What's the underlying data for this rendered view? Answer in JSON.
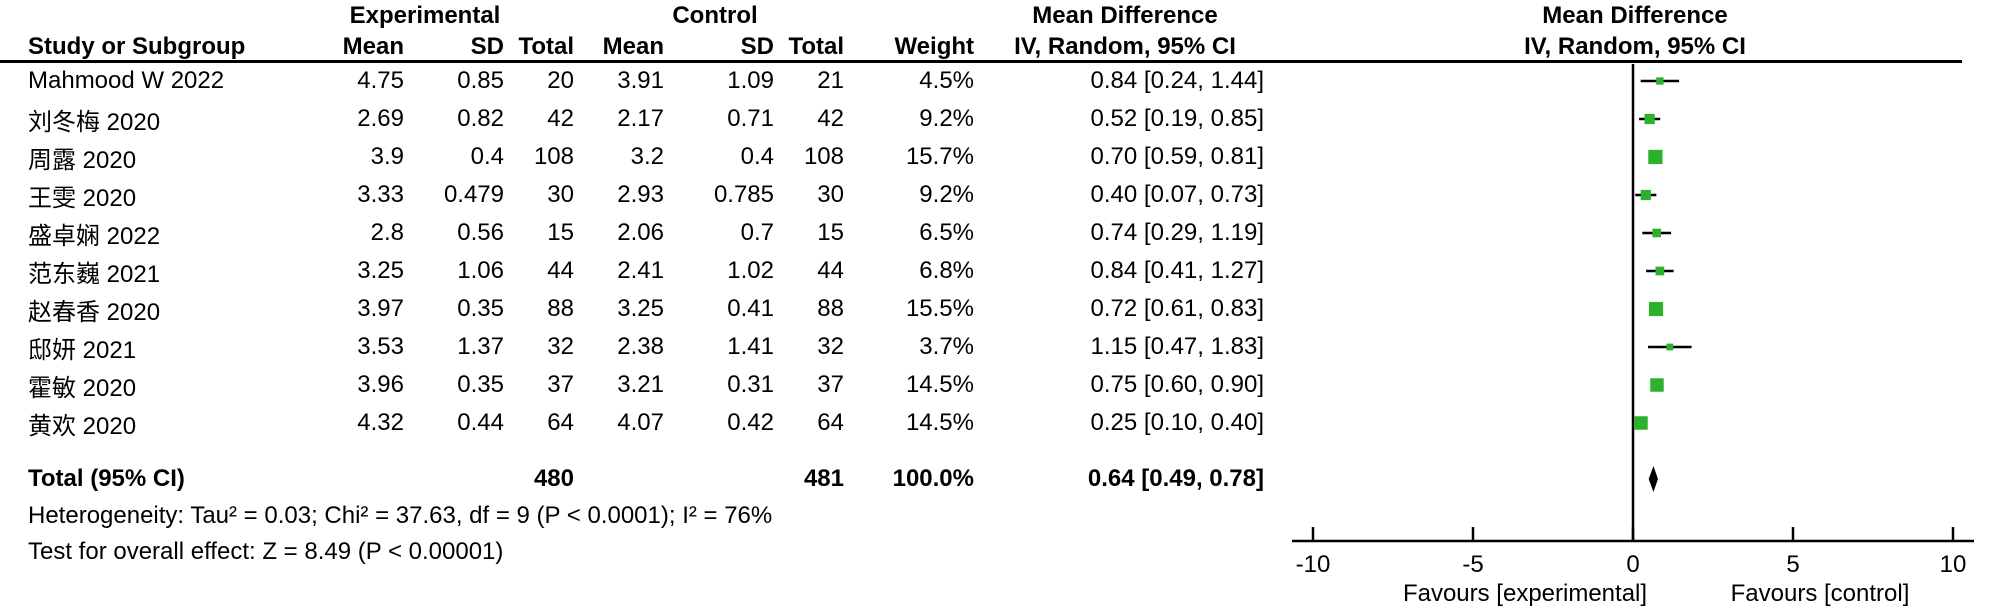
{
  "chart_data": {
    "type": "scatter",
    "variant": "forest-plot",
    "effect_measure": "Mean Difference",
    "model": "IV, Random, 95% CI",
    "xlim": [
      -10,
      10
    ],
    "x_ticks": [
      -10,
      -5,
      0,
      5,
      10
    ],
    "grid": false,
    "marker_color": "#2BB12B",
    "line_color": "#000000",
    "columns": {
      "study": "Study or Subgroup",
      "group1": "Experimental",
      "group2": "Control",
      "mean": "Mean",
      "sd": "SD",
      "total": "Total",
      "weight": "Weight",
      "md_text": "Mean Difference",
      "md_plot": "Mean Difference",
      "ci_method_text": "IV, Random, 95% CI",
      "ci_method_plot": "IV, Random, 95% CI"
    },
    "studies": [
      {
        "name": "Mahmood W 2022",
        "mean1": "4.75",
        "sd1": "0.85",
        "total1": "20",
        "mean2": "3.91",
        "sd2": "1.09",
        "total2": "21",
        "weight": "4.5%",
        "weight_pct": 4.5,
        "ci_text": "0.84 [0.24, 1.44]",
        "md": 0.84,
        "lo": 0.24,
        "hi": 1.44
      },
      {
        "name": "刘冬梅 2020",
        "mean1": "2.69",
        "sd1": "0.82",
        "total1": "42",
        "mean2": "2.17",
        "sd2": "0.71",
        "total2": "42",
        "weight": "9.2%",
        "weight_pct": 9.2,
        "ci_text": "0.52 [0.19, 0.85]",
        "md": 0.52,
        "lo": 0.19,
        "hi": 0.85
      },
      {
        "name": "周露 2020",
        "mean1": "3.9",
        "sd1": "0.4",
        "total1": "108",
        "mean2": "3.2",
        "sd2": "0.4",
        "total2": "108",
        "weight": "15.7%",
        "weight_pct": 15.7,
        "ci_text": "0.70 [0.59, 0.81]",
        "md": 0.7,
        "lo": 0.59,
        "hi": 0.81
      },
      {
        "name": "王雯 2020",
        "mean1": "3.33",
        "sd1": "0.479",
        "total1": "30",
        "mean2": "2.93",
        "sd2": "0.785",
        "total2": "30",
        "weight": "9.2%",
        "weight_pct": 9.2,
        "ci_text": "0.40 [0.07, 0.73]",
        "md": 0.4,
        "lo": 0.07,
        "hi": 0.73
      },
      {
        "name": "盛卓娴 2022",
        "mean1": "2.8",
        "sd1": "0.56",
        "total1": "15",
        "mean2": "2.06",
        "sd2": "0.7",
        "total2": "15",
        "weight": "6.5%",
        "weight_pct": 6.5,
        "ci_text": "0.74 [0.29, 1.19]",
        "md": 0.74,
        "lo": 0.29,
        "hi": 1.19
      },
      {
        "name": "范东巍 2021",
        "mean1": "3.25",
        "sd1": "1.06",
        "total1": "44",
        "mean2": "2.41",
        "sd2": "1.02",
        "total2": "44",
        "weight": "6.8%",
        "weight_pct": 6.8,
        "ci_text": "0.84 [0.41, 1.27]",
        "md": 0.84,
        "lo": 0.41,
        "hi": 1.27
      },
      {
        "name": "赵春香 2020",
        "mean1": "3.97",
        "sd1": "0.35",
        "total1": "88",
        "mean2": "3.25",
        "sd2": "0.41",
        "total2": "88",
        "weight": "15.5%",
        "weight_pct": 15.5,
        "ci_text": "0.72 [0.61, 0.83]",
        "md": 0.72,
        "lo": 0.61,
        "hi": 0.83
      },
      {
        "name": "邸妍 2021",
        "mean1": "3.53",
        "sd1": "1.37",
        "total1": "32",
        "mean2": "2.38",
        "sd2": "1.41",
        "total2": "32",
        "weight": "3.7%",
        "weight_pct": 3.7,
        "ci_text": "1.15 [0.47, 1.83]",
        "md": 1.15,
        "lo": 0.47,
        "hi": 1.83
      },
      {
        "name": "霍敏 2020",
        "mean1": "3.96",
        "sd1": "0.35",
        "total1": "37",
        "mean2": "3.21",
        "sd2": "0.31",
        "total2": "37",
        "weight": "14.5%",
        "weight_pct": 14.5,
        "ci_text": "0.75 [0.60, 0.90]",
        "md": 0.75,
        "lo": 0.6,
        "hi": 0.9
      },
      {
        "name": "黄欢 2020",
        "mean1": "4.32",
        "sd1": "0.44",
        "total1": "64",
        "mean2": "4.07",
        "sd2": "0.42",
        "total2": "64",
        "weight": "14.5%",
        "weight_pct": 14.5,
        "ci_text": "0.25 [0.10, 0.40]",
        "md": 0.25,
        "lo": 0.1,
        "hi": 0.4
      }
    ],
    "total": {
      "label": "Total (95% CI)",
      "total1": "480",
      "total2": "481",
      "weight": "100.0%",
      "ci_text": "0.64 [0.49, 0.78]",
      "md": 0.64,
      "lo": 0.49,
      "hi": 0.78
    },
    "footnotes": {
      "heterogeneity": "Heterogeneity: Tau² = 0.03; Chi² = 37.63, df = 9 (P < 0.0001); I² = 76%",
      "overall_effect": "Test for overall effect: Z = 8.49 (P < 0.00001)"
    },
    "axis_labels": {
      "favours_left": "Favours [experimental]",
      "favours_right": "Favours [control]"
    }
  }
}
